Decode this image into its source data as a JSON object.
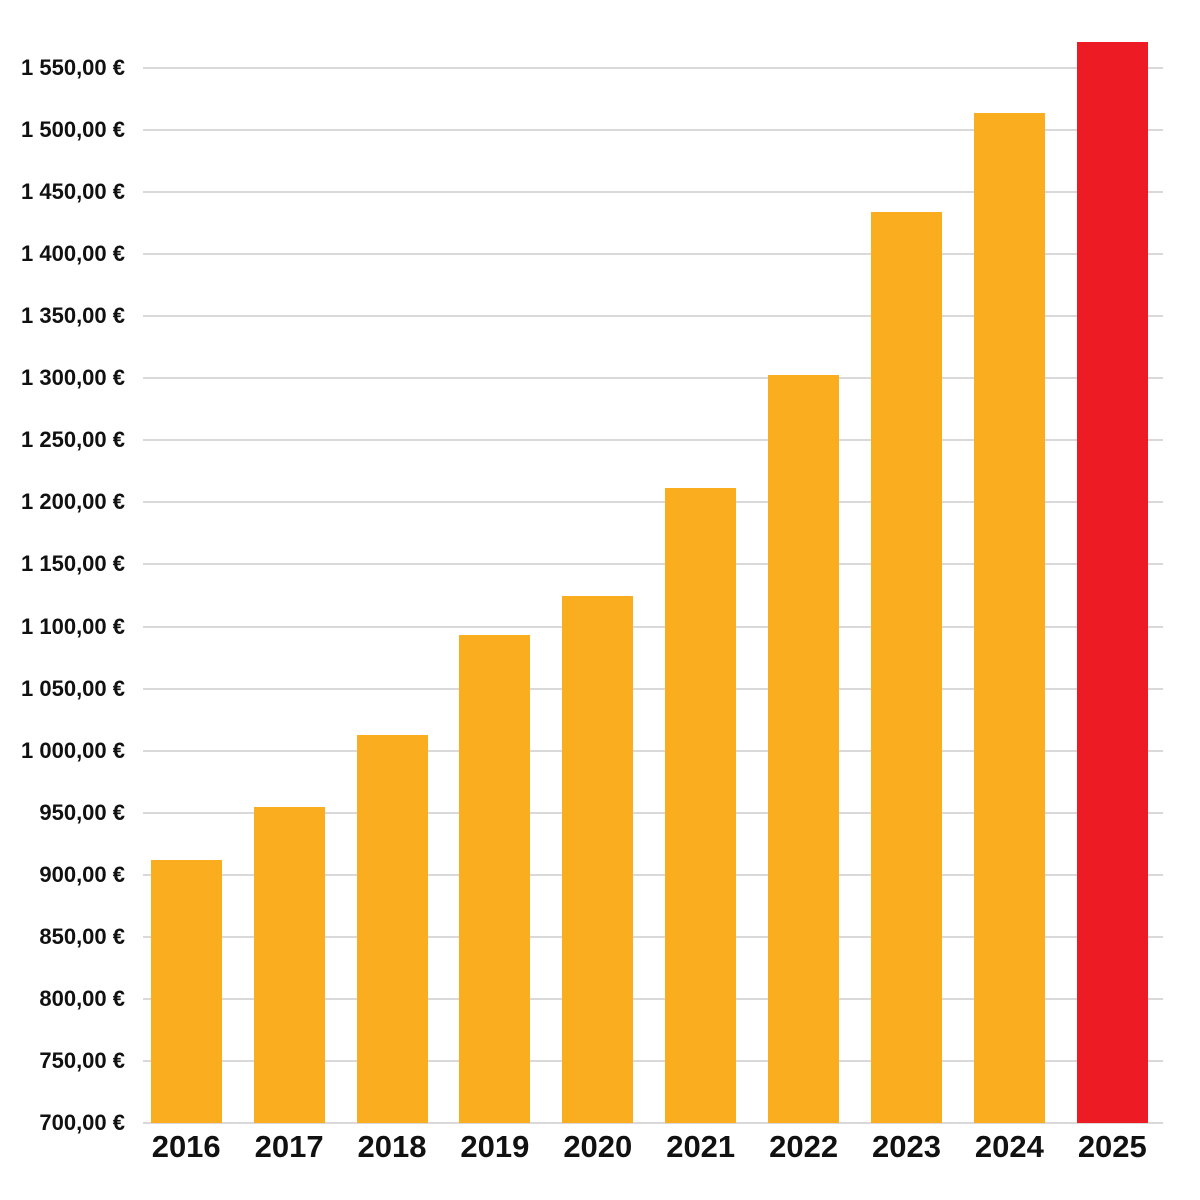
{
  "chart_data": {
    "type": "bar",
    "title": "",
    "xlabel": "",
    "ylabel": "",
    "unit": "EUR",
    "categories": [
      "2016",
      "2017",
      "2018",
      "2019",
      "2020",
      "2021",
      "2022",
      "2023",
      "2024",
      "2025"
    ],
    "values": [
      912,
      955,
      1013,
      1093,
      1125,
      1212,
      1303,
      1434,
      1514,
      1571
    ],
    "highlight_category": "2025",
    "y_ticks": [
      700,
      750,
      800,
      850,
      900,
      950,
      1000,
      1050,
      1100,
      1150,
      1200,
      1250,
      1300,
      1350,
      1400,
      1450,
      1500,
      1550
    ],
    "y_tick_labels": [
      "700,00 €",
      "750,00 €",
      "800,00 €",
      "850,00 €",
      "900,00 €",
      "950,00 €",
      "1 000,00 €",
      "1 050,00 €",
      "1 100,00 €",
      "1 150,00 €",
      "1 200,00 €",
      "1 250,00 €",
      "1 300,00 €",
      "1 350,00 €",
      "1 400,00 €",
      "1 450,00 €",
      "1 500,00 €",
      "1 550,00 €"
    ],
    "ylim": [
      700,
      1605
    ],
    "grid": true,
    "legend_position": "none",
    "colors": {
      "bar_default": "#FAAD1E",
      "bar_highlight": "#ED1C24",
      "gridline": "#D9D9D9",
      "text": "#111111",
      "background": "#FFFFFF"
    }
  }
}
